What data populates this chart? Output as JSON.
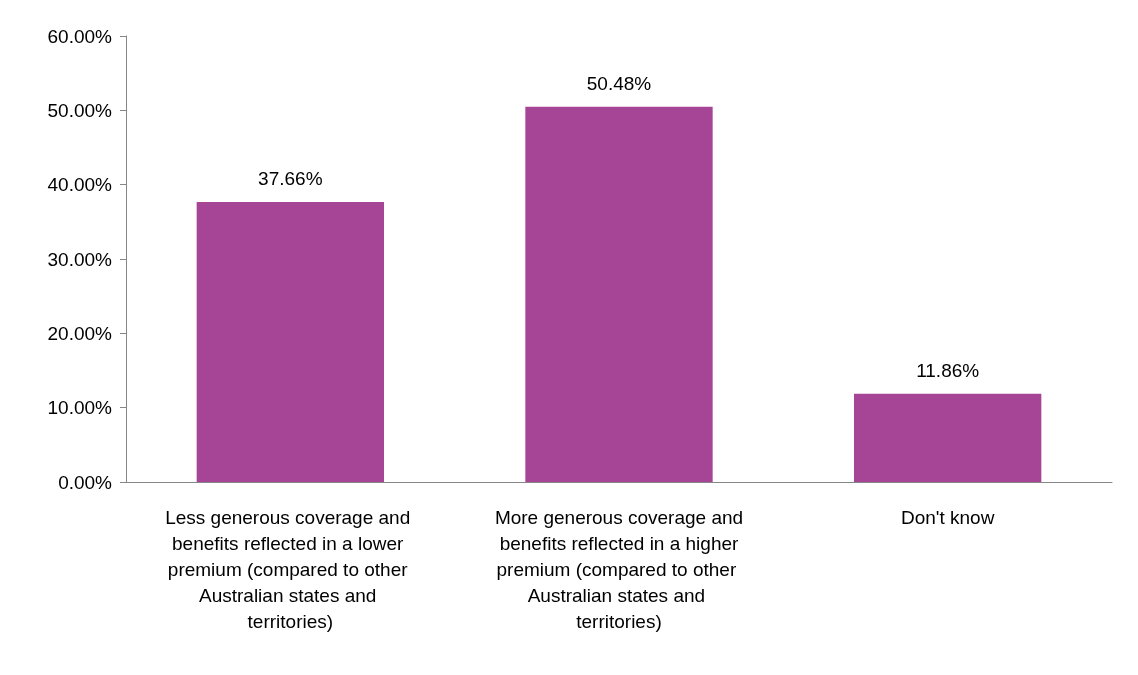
{
  "chart_data": {
    "type": "bar",
    "categories": [
      "Less generous coverage and benefits reflected in a lower premium (compared to other Australian states and territories)",
      "More generous coverage and benefits reflected in a higher premium (compared to other Australian states and territories)",
      "Don't know"
    ],
    "values": [
      37.66,
      50.48,
      11.86
    ],
    "value_labels": [
      "37.66%",
      "50.48%",
      "11.86%"
    ],
    "color": "#a64596",
    "ylim": [
      0,
      60
    ],
    "yticks": [
      {
        "value": 0,
        "label": "0.00%"
      },
      {
        "value": 10,
        "label": "10.00%"
      },
      {
        "value": 20,
        "label": "20.00%"
      },
      {
        "value": 30,
        "label": "30.00%"
      },
      {
        "value": 40,
        "label": "40.00%"
      },
      {
        "value": 50,
        "label": "50.00%"
      },
      {
        "value": 60,
        "label": "60.00%"
      }
    ],
    "grid": false
  }
}
